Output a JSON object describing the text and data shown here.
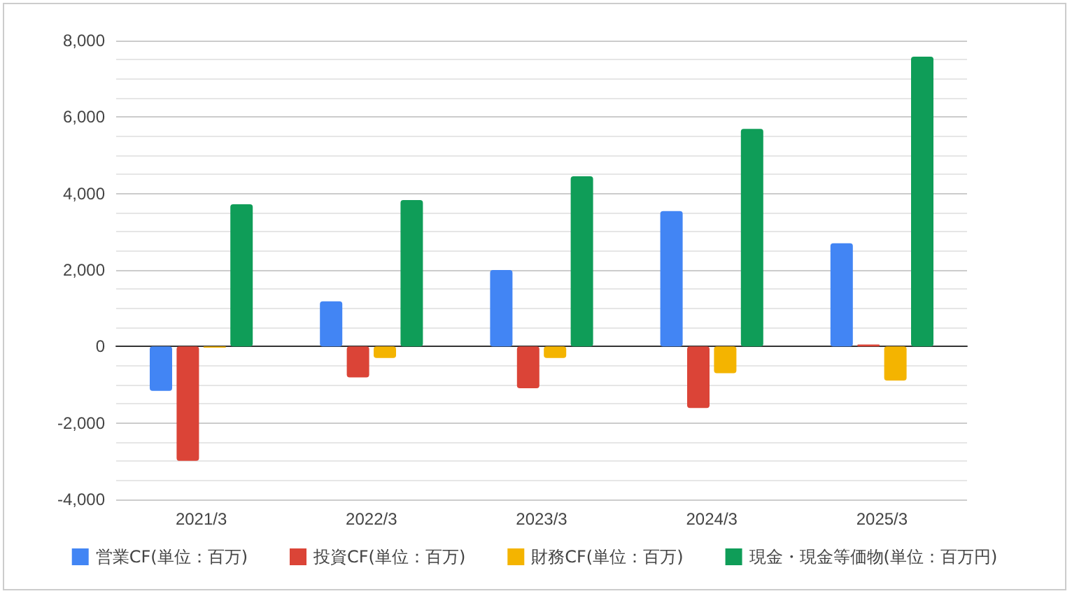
{
  "chart_data": {
    "type": "bar",
    "categories": [
      "2021/3",
      "2022/3",
      "2023/3",
      "2024/3",
      "2025/3"
    ],
    "series": [
      {
        "name": "営業CF(単位：百万)",
        "color": "#4285f4",
        "values": [
          -1160,
          1180,
          2000,
          3540,
          2700
        ]
      },
      {
        "name": "投資CF(単位：百万)",
        "color": "#db4437",
        "values": [
          -2990,
          -810,
          -1090,
          -1610,
          50
        ]
      },
      {
        "name": "財務CF(単位：百万)",
        "color": "#f4b400",
        "values": [
          -30,
          -300,
          -300,
          -700,
          -890
        ]
      },
      {
        "name": "現金・現金等価物(単位：百万円)",
        "color": "#0f9d58",
        "values": [
          3720,
          3830,
          4450,
          5690,
          7580
        ]
      }
    ],
    "ylim": [
      -4000,
      8000
    ],
    "yticks": [
      {
        "value": -4000,
        "label": "-4,000"
      },
      {
        "value": -2000,
        "label": "-2,000"
      },
      0,
      {
        "value": 2000,
        "label": "2,000"
      },
      {
        "value": 4000,
        "label": "4,000"
      },
      {
        "value": 6000,
        "label": "6,000"
      },
      {
        "value": 8000,
        "label": "8,000"
      }
    ],
    "grid": "y",
    "legend": "bottom"
  }
}
